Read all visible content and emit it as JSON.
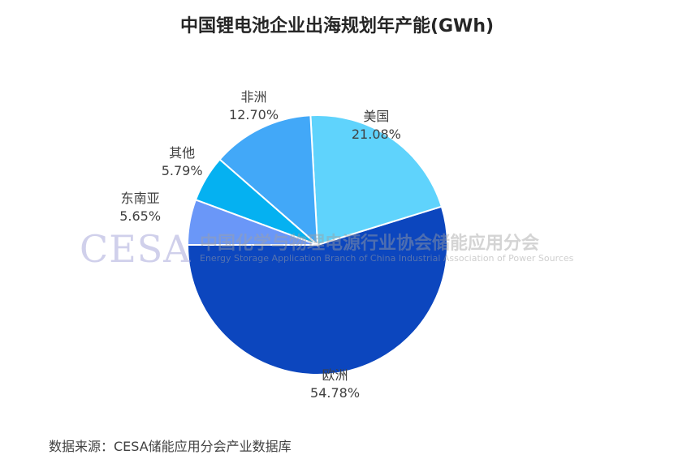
{
  "chart_data": {
    "type": "pie",
    "title": "中国锂电池企业出海规划年产能(GWh)",
    "slices": [
      {
        "label": "欧洲",
        "value": 54.78,
        "value_text": "54.78%",
        "color": "#0C46BE"
      },
      {
        "label": "美国",
        "value": 21.08,
        "value_text": "21.08%",
        "color": "#5FD3FC"
      },
      {
        "label": "非洲",
        "value": 12.7,
        "value_text": "12.70%",
        "color": "#42A8F8"
      },
      {
        "label": "其他",
        "value": 5.79,
        "value_text": "5.79%",
        "color": "#05B1F1"
      },
      {
        "label": "东南亚",
        "value": 5.65,
        "value_text": "5.65%",
        "color": "#6A97F8"
      }
    ]
  },
  "watermark": {
    "logo": "CESA",
    "org_cn": "中国化学与物理电源行业协会储能应用分会",
    "org_en": "Energy Storage Application Branch of China Industrial Association of Power Sources"
  },
  "source_note": "数据来源：CESA储能应用分会产业数据库"
}
